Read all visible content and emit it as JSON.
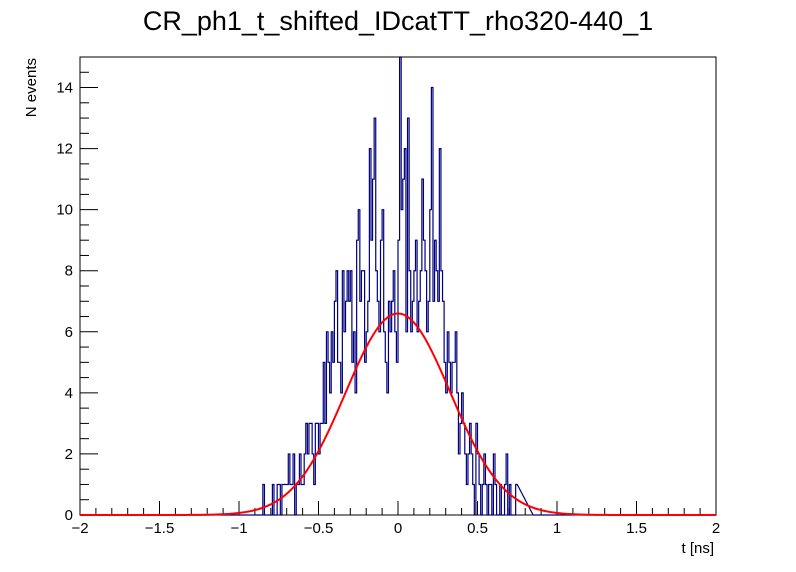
{
  "chart_data": {
    "type": "histogram",
    "title": "CR_ph1_t_shifted_IDcatTT_rho320-440_1",
    "xlabel": "t [ns]",
    "ylabel": "N events",
    "xlim": [
      -2,
      2
    ],
    "ylim": [
      0,
      15
    ],
    "grid": false,
    "legend": "none",
    "xticks": [
      -2,
      -1.5,
      -1,
      -0.5,
      0,
      0.5,
      1,
      1.5,
      2
    ],
    "xtick_labels": [
      "−2",
      "−1.5",
      "−1",
      "−0.5",
      "0",
      "0.5",
      "1",
      "1.5",
      "2"
    ],
    "yticks": [
      0,
      2,
      4,
      6,
      8,
      10,
      12,
      14
    ],
    "ytick_labels": [
      "0",
      "2",
      "4",
      "6",
      "8",
      "10",
      "12",
      "14"
    ],
    "histogram": {
      "color": "#00007f",
      "bin_width": 0.01,
      "bin_low_edges": [
        -0.85,
        -0.84,
        -0.83,
        -0.82,
        -0.81,
        -0.8,
        -0.79,
        -0.78,
        -0.77,
        -0.76,
        -0.75,
        -0.74,
        -0.73,
        -0.72,
        -0.71,
        -0.7,
        -0.69,
        -0.68,
        -0.67,
        -0.66,
        -0.65,
        -0.64,
        -0.63,
        -0.62,
        -0.61,
        -0.6,
        -0.59,
        -0.58,
        -0.57,
        -0.56,
        -0.55,
        -0.54,
        -0.53,
        -0.52,
        -0.51,
        -0.5,
        -0.49,
        -0.48,
        -0.47,
        -0.46,
        -0.45,
        -0.44,
        -0.43,
        -0.42,
        -0.41,
        -0.4,
        -0.39,
        -0.38,
        -0.37,
        -0.36,
        -0.35,
        -0.34,
        -0.33,
        -0.32,
        -0.31,
        -0.3,
        -0.29,
        -0.28,
        -0.27,
        -0.26,
        -0.25,
        -0.24,
        -0.23,
        -0.22,
        -0.21,
        -0.2,
        -0.19,
        -0.18,
        -0.17,
        -0.16,
        -0.15,
        -0.14,
        -0.13,
        -0.12,
        -0.11,
        -0.1,
        -0.09,
        -0.08,
        -0.07,
        -0.06,
        -0.05,
        -0.04,
        -0.03,
        -0.02,
        -0.01,
        0.0,
        0.01,
        0.02,
        0.03,
        0.04,
        0.05,
        0.06,
        0.07,
        0.08,
        0.09,
        0.1,
        0.11,
        0.12,
        0.13,
        0.14,
        0.15,
        0.16,
        0.17,
        0.18,
        0.19,
        0.2,
        0.21,
        0.22,
        0.23,
        0.24,
        0.25,
        0.26,
        0.27,
        0.28,
        0.29,
        0.3,
        0.31,
        0.32,
        0.33,
        0.34,
        0.35,
        0.36,
        0.37,
        0.38,
        0.39,
        0.4,
        0.41,
        0.42,
        0.43,
        0.44,
        0.45,
        0.46,
        0.47,
        0.48,
        0.49,
        0.5,
        0.51,
        0.52,
        0.53,
        0.54,
        0.55,
        0.56,
        0.57,
        0.58,
        0.59,
        0.6,
        0.61,
        0.62,
        0.63,
        0.64,
        0.65,
        0.66,
        0.67,
        0.68,
        0.69,
        0.7,
        0.71,
        0.72,
        0.73,
        0.74,
        0.75,
        0.76,
        0.77,
        0.78,
        0.79,
        0.8,
        0.81,
        0.82,
        0.83,
        0.84
      ],
      "counts": [
        1,
        0,
        0,
        0,
        0,
        0,
        1,
        0,
        0,
        1,
        1,
        0,
        1,
        1,
        1,
        1,
        2,
        1,
        1,
        2,
        0,
        1,
        1,
        2,
        1,
        1,
        2,
        3,
        2,
        3,
        3,
        2,
        1,
        3,
        3,
        2,
        3,
        3,
        5,
        3,
        6,
        5,
        4,
        6,
        5,
        7,
        8,
        5,
        5,
        4,
        8,
        6,
        7,
        8,
        7,
        8,
        5,
        6,
        4,
        9,
        10,
        7,
        8,
        8,
        5,
        6,
        7,
        12,
        9,
        11,
        13,
        8,
        7,
        6,
        9,
        10,
        6,
        5,
        4,
        7,
        6,
        7,
        8,
        6,
        5,
        9,
        15,
        10,
        11,
        12,
        6,
        13,
        8,
        6,
        7,
        8,
        9,
        6,
        7,
        8,
        11,
        9,
        8,
        6,
        7,
        10,
        14,
        7,
        9,
        8,
        7,
        12,
        8,
        7,
        5,
        4,
        6,
        5,
        4,
        5,
        5,
        6,
        4,
        2,
        3,
        4,
        3,
        2,
        1,
        2,
        3,
        2,
        1,
        0,
        3,
        2,
        1,
        0,
        1,
        2,
        1,
        0,
        1,
        1,
        0,
        2,
        1,
        0,
        0,
        1,
        0,
        0,
        1,
        2,
        0,
        1,
        0,
        0,
        0,
        1
      ]
    },
    "fit": {
      "type": "gaussian",
      "color": "#ff0000",
      "amplitude": 6.6,
      "mean": 0.0,
      "sigma": 0.33,
      "x_range": [
        -2,
        2
      ]
    }
  }
}
